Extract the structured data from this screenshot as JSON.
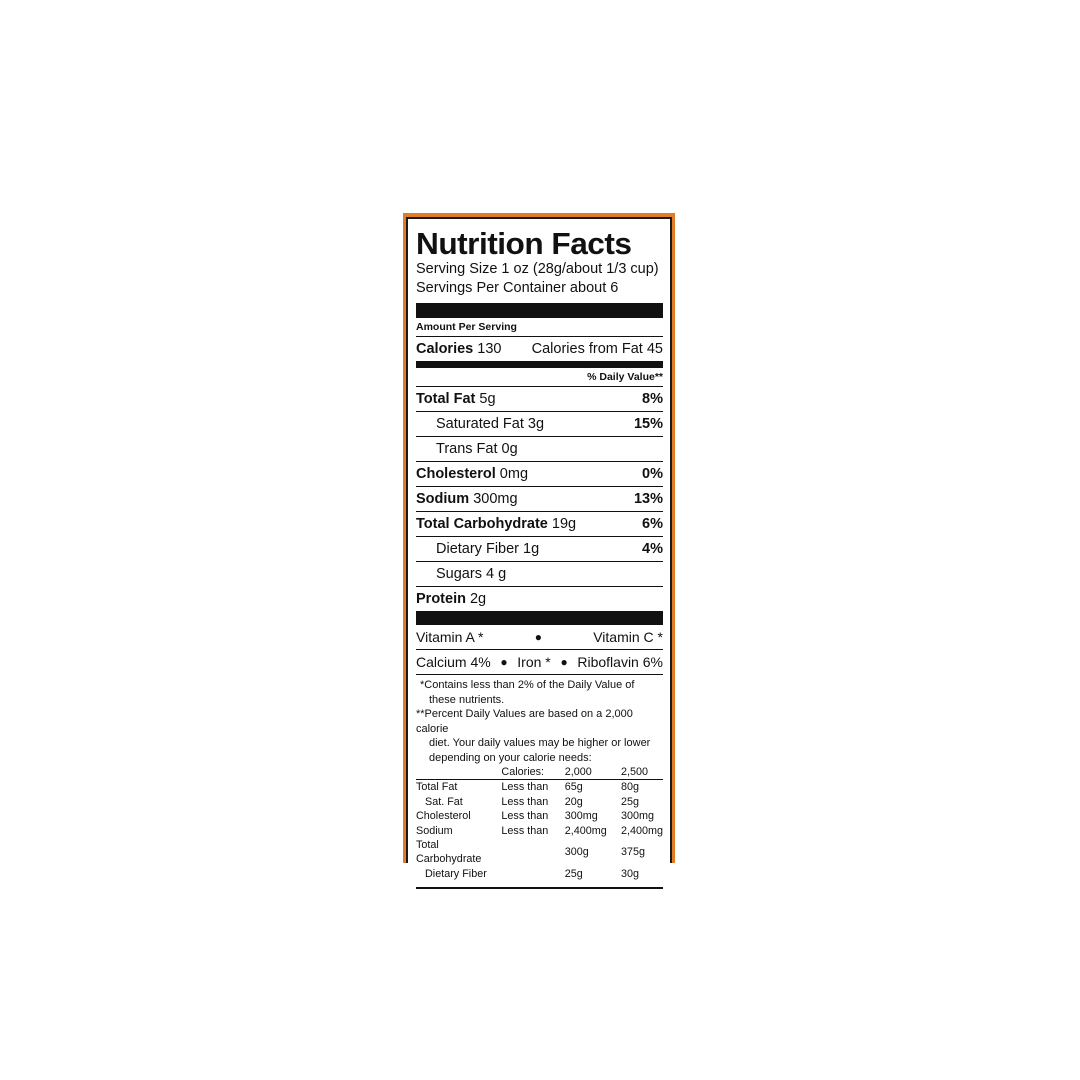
{
  "title": "Nutrition Facts",
  "serving_size": "Serving Size 1 oz (28g/about 1/3 cup)",
  "servings_per_container": "Servings Per Container about 6",
  "amount_per_serving": "Amount Per Serving",
  "calories": {
    "label": "Calories",
    "value": "130",
    "from_fat": "Calories from Fat 45"
  },
  "daily_value_header": "% Daily Value**",
  "nutrients": [
    {
      "name": "Total Fat",
      "amount": "5g",
      "dv": "8%",
      "bold": true
    },
    {
      "name": "Saturated Fat",
      "amount": "3g",
      "dv": "15%",
      "bold": false
    },
    {
      "name": "Trans Fat",
      "amount": "0g",
      "dv": "",
      "bold": false
    },
    {
      "name": "Cholesterol",
      "amount": "0mg",
      "dv": "0%",
      "bold": true
    },
    {
      "name": "Sodium",
      "amount": "300mg",
      "dv": "13%",
      "bold": true
    },
    {
      "name": "Total Carbohydrate",
      "amount": "19g",
      "dv": "6%",
      "bold": true
    },
    {
      "name": "Dietary Fiber",
      "amount": "1g",
      "dv": "4%",
      "bold": false
    },
    {
      "name": "Sugars",
      "amount": "4 g",
      "dv": "",
      "bold": false
    },
    {
      "name": "Protein",
      "amount": "2g",
      "dv": "",
      "bold": true
    }
  ],
  "vitamins_row1": {
    "left": "Vitamin A *",
    "right": "Vitamin C *"
  },
  "vitamins_row2": {
    "a": "Calcium 4%",
    "b": "Iron *",
    "c": "Riboflavin 6%"
  },
  "footnotes": {
    "f1a": "*Contains less than 2% of the Daily Value of",
    "f1b": "these nutrients.",
    "f2a": "**Percent Daily Values are based on a 2,000 calorie",
    "f2b": "diet. Your daily values may be higher or lower",
    "f2c": "depending on your calorie needs:"
  },
  "dv_table": {
    "header": [
      "",
      "Calories:",
      "2,000",
      "2,500"
    ],
    "rows": [
      [
        "Total Fat",
        "Less than",
        "65g",
        "80g"
      ],
      [
        "Sat. Fat",
        "Less than",
        "20g",
        "25g"
      ],
      [
        "Cholesterol",
        "Less than",
        "300mg",
        "300mg"
      ],
      [
        "Sodium",
        "Less than",
        "2,400mg",
        "2,400mg"
      ],
      [
        "Total Carbohydrate",
        "",
        "300g",
        "375g"
      ],
      [
        "Dietary Fiber",
        "",
        "25g",
        "30g"
      ]
    ]
  },
  "colors": {
    "border": "#e07b2a",
    "ink": "#111111"
  }
}
